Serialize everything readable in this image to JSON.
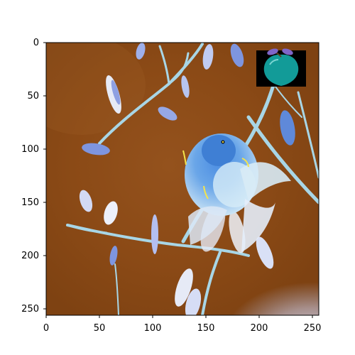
{
  "figure": {
    "x_ticks": [
      "0",
      "50",
      "100",
      "150",
      "200",
      "250"
    ],
    "y_ticks": [
      "0",
      "50",
      "100",
      "150",
      "200",
      "250"
    ]
  },
  "colors": {
    "background_brown": "#8f4f1b",
    "branch": "#a8d6e6",
    "leaf_light": "#e6eaf6",
    "leaf_blue": "#7e95df",
    "bird_blue": "#3f7fd4",
    "bird_light": "#d7ecf7",
    "apple_teal": "#129b98",
    "apple_leaf": "#7f66c8",
    "black": "#000000"
  },
  "icons": {
    "apple": "apple-icon"
  }
}
